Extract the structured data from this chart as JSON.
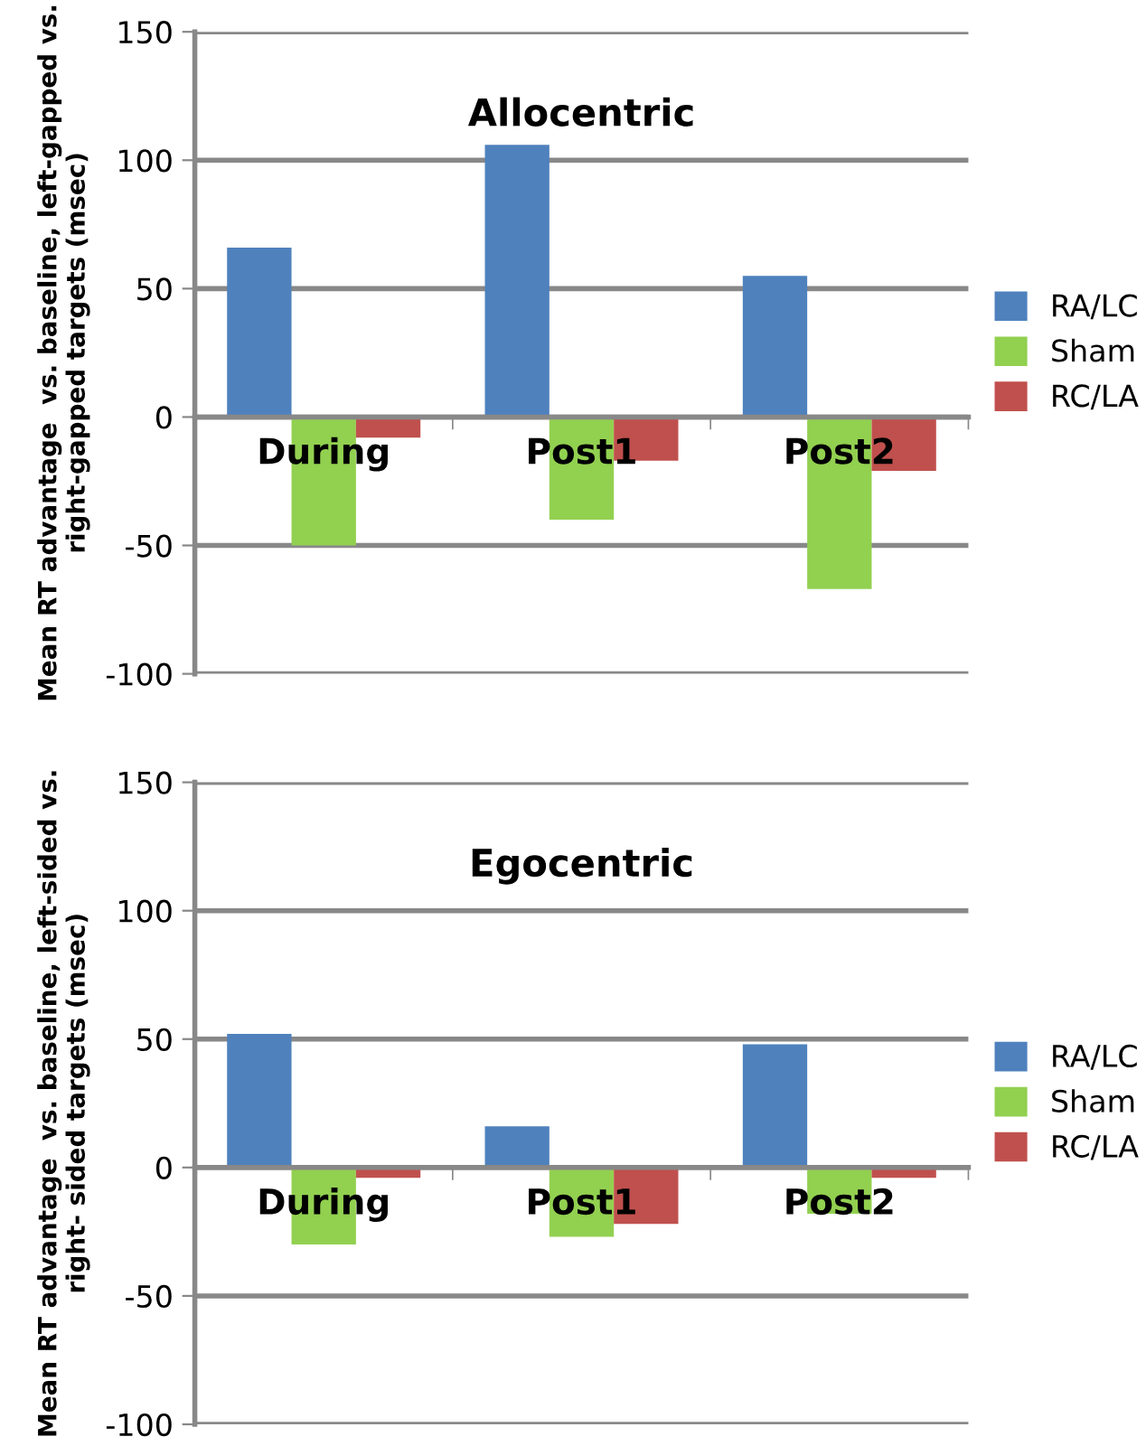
{
  "chart_data": [
    {
      "type": "bar",
      "title": "Allocentric",
      "ylabel": "Mean RT advantage  vs. baseline, left-gapped vs. right-gapped targets (msec)",
      "categories": [
        "During",
        "Post1",
        "Post2"
      ],
      "series": [
        {
          "name": "RA/LC",
          "color": "#4f81bd",
          "values": [
            66,
            106,
            55
          ]
        },
        {
          "name": "Sham",
          "color": "#92d050",
          "values": [
            -50,
            -40,
            -67
          ]
        },
        {
          "name": "RC/LA",
          "color": "#c0504d",
          "values": [
            -8,
            -17,
            -21
          ]
        }
      ],
      "ylim": [
        -100,
        150
      ],
      "yticks": [
        -100,
        -50,
        0,
        50,
        100,
        150
      ],
      "grid": "y",
      "legend": "right"
    },
    {
      "type": "bar",
      "title": "Egocentric",
      "ylabel": "Mean RT advantage  vs. baseline, left-sided vs. right- sided targets (msec)",
      "categories": [
        "During",
        "Post1",
        "Post2"
      ],
      "series": [
        {
          "name": "RA/LC",
          "color": "#4f81bd",
          "values": [
            52,
            16,
            48
          ]
        },
        {
          "name": "Sham",
          "color": "#92d050",
          "values": [
            -30,
            -27,
            -18
          ]
        },
        {
          "name": "RC/LA",
          "color": "#c0504d",
          "values": [
            -4,
            -22,
            -4
          ]
        }
      ],
      "ylim": [
        -100,
        150
      ],
      "yticks": [
        -100,
        -50,
        0,
        50,
        100,
        150
      ],
      "grid": "y",
      "legend": "right"
    }
  ]
}
